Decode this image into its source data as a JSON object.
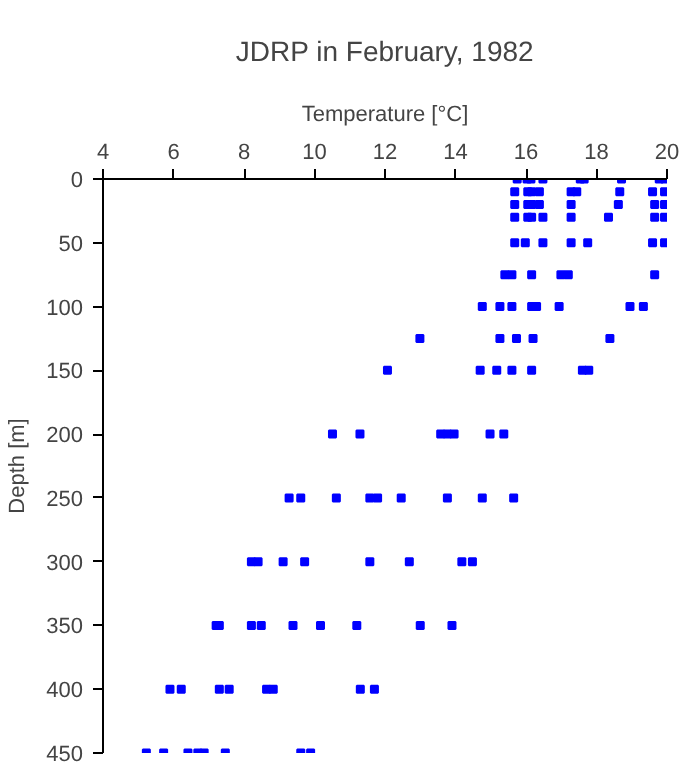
{
  "chart_data": {
    "type": "scatter",
    "title": "JDRP in February, 1982",
    "xlabel": "Temperature [°C]",
    "ylabel": "Depth [m]",
    "xlim": [
      4,
      20
    ],
    "xticks": [
      4,
      6,
      8,
      10,
      12,
      14,
      16,
      18,
      20
    ],
    "ylim": [
      450,
      0
    ],
    "yticks": [
      0,
      50,
      100,
      150,
      200,
      250,
      300,
      350,
      400,
      450
    ],
    "grid": false,
    "marker": "square",
    "series": [
      {
        "color": "#0000ff",
        "x": [
          15.75,
          16.03,
          16.14,
          16.48,
          17.54,
          17.65,
          18.71,
          19.78,
          19.94,
          15.68,
          16.05,
          16.16,
          16.38,
          17.28,
          17.44,
          18.66,
          19.59,
          19.93,
          15.68,
          16.05,
          16.16,
          16.38,
          17.28,
          18.62,
          19.65,
          19.93,
          15.68,
          16.05,
          16.16,
          16.48,
          17.28,
          18.34,
          19.65,
          19.93,
          15.68,
          15.98,
          16.48,
          17.28,
          17.75,
          19.59,
          19.93,
          15.4,
          15.6,
          16.16,
          16.99,
          17.2,
          19.65,
          14.76,
          15.26,
          15.6,
          16.16,
          16.3,
          16.94,
          18.95,
          19.33,
          12.99,
          15.26,
          15.73,
          16.2,
          18.38,
          12.07,
          14.7,
          15.17,
          15.6,
          16.16,
          17.6,
          17.78,
          10.51,
          11.29,
          13.58,
          13.77,
          13.96,
          14.98,
          15.37,
          9.28,
          9.61,
          10.62,
          11.57,
          11.79,
          12.46,
          13.77,
          14.76,
          15.65,
          8.21,
          8.4,
          9.11,
          9.72,
          11.57,
          12.69,
          14.18,
          14.48,
          7.21,
          7.3,
          8.21,
          8.49,
          9.39,
          10.17,
          11.2,
          13.0,
          13.9,
          5.9,
          6.22,
          7.3,
          7.58,
          8.64,
          8.83,
          11.3,
          11.7,
          5.23,
          5.72,
          6.41,
          6.69,
          6.87,
          7.47,
          9.61,
          9.89
        ],
        "values": [
          0,
          0,
          0,
          0,
          0,
          0,
          0,
          0,
          0,
          10,
          10,
          10,
          10,
          10,
          10,
          10,
          10,
          10,
          20,
          20,
          20,
          20,
          20,
          20,
          20,
          20,
          30,
          30,
          30,
          30,
          30,
          30,
          30,
          30,
          50,
          50,
          50,
          50,
          50,
          50,
          50,
          75,
          75,
          75,
          75,
          75,
          75,
          100,
          100,
          100,
          100,
          100,
          100,
          100,
          100,
          125,
          125,
          125,
          125,
          125,
          150,
          150,
          150,
          150,
          150,
          150,
          150,
          200,
          200,
          200,
          200,
          200,
          200,
          200,
          250,
          250,
          250,
          250,
          250,
          250,
          250,
          250,
          250,
          300,
          300,
          300,
          300,
          300,
          300,
          300,
          300,
          350,
          350,
          350,
          350,
          350,
          350,
          350,
          350,
          350,
          400,
          400,
          400,
          400,
          400,
          400,
          400,
          400,
          450,
          450,
          450,
          450,
          450,
          450,
          450,
          450
        ]
      }
    ]
  }
}
